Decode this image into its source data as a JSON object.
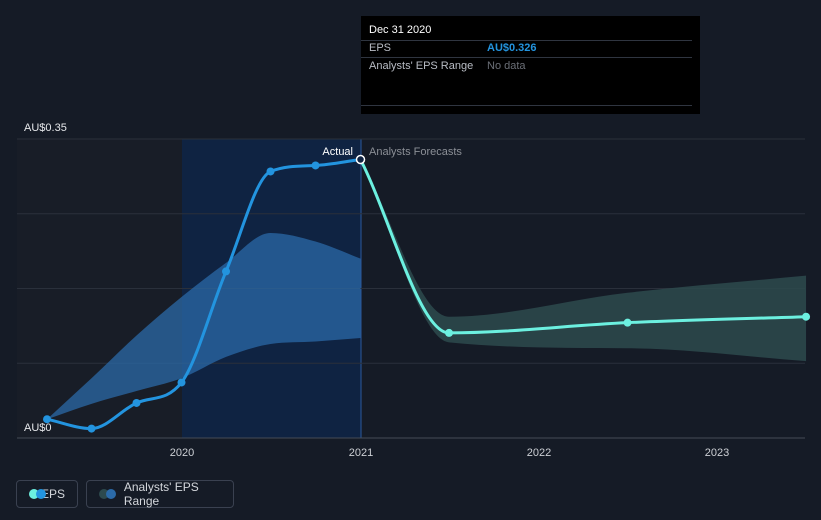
{
  "tooltip": {
    "date": "Dec 31 2020",
    "eps_label": "EPS",
    "eps_value": "AU$0.326",
    "range_label": "Analysts' EPS Range",
    "range_value": "No data"
  },
  "labels": {
    "actual": "Actual",
    "forecast": "Analysts Forecasts"
  },
  "legend": {
    "eps": "EPS",
    "range": "Analysts' EPS Range"
  },
  "colors": {
    "eps": "#2394df",
    "forecast": "#6cf0e0",
    "past_range": "#2b6aa8",
    "future_range": "#2d4a4e",
    "highlight": "#0f2342",
    "tooltip_value": "#2394df",
    "muted": "#8b8f96"
  },
  "chart_data": {
    "type": "line",
    "y_axis": {
      "min": 0,
      "max": 0.35,
      "tick_labels": [
        "AU$0",
        "AU$0.35"
      ]
    },
    "x_axis": {
      "tick_labels": [
        "2020",
        "2021",
        "2022",
        "2023"
      ]
    },
    "series": [
      {
        "name": "EPS",
        "kind": "actual",
        "points": [
          [
            "2019-03-31",
            0.022
          ],
          [
            "2019-06-30",
            0.011
          ],
          [
            "2019-09-30",
            0.041
          ],
          [
            "2019-12-31",
            0.065
          ],
          [
            "2020-03-31",
            0.195
          ],
          [
            "2020-06-30",
            0.312
          ],
          [
            "2020-09-30",
            0.319
          ],
          [
            "2020-12-31",
            0.326
          ]
        ]
      },
      {
        "name": "EPS",
        "kind": "forecast",
        "points": [
          [
            "2020-12-31",
            0.326
          ],
          [
            "2021-06-30",
            0.123
          ],
          [
            "2022-06-30",
            0.135
          ],
          [
            "2023-06-30",
            0.142
          ]
        ]
      }
    ],
    "ranges": [
      {
        "name": "Analysts' EPS Range",
        "kind": "past",
        "points": [
          [
            "2019-03-31",
            0.022,
            0.022
          ],
          [
            "2019-06-30",
            0.04,
            0.07
          ],
          [
            "2019-09-30",
            0.055,
            0.12
          ],
          [
            "2019-12-31",
            0.07,
            0.165
          ],
          [
            "2020-03-31",
            0.095,
            0.205
          ],
          [
            "2020-06-30",
            0.11,
            0.24
          ],
          [
            "2020-09-30",
            0.113,
            0.23
          ],
          [
            "2020-12-31",
            0.117,
            0.21
          ]
        ]
      },
      {
        "name": "Analysts' EPS Range",
        "kind": "forecast",
        "points": [
          [
            "2020-12-31",
            0.326,
            0.326
          ],
          [
            "2021-06-30",
            0.112,
            0.142
          ],
          [
            "2022-06-30",
            0.105,
            0.17
          ],
          [
            "2023-06-30",
            0.09,
            0.19
          ]
        ]
      }
    ],
    "grid": true,
    "legend_position": "bottom-left"
  }
}
